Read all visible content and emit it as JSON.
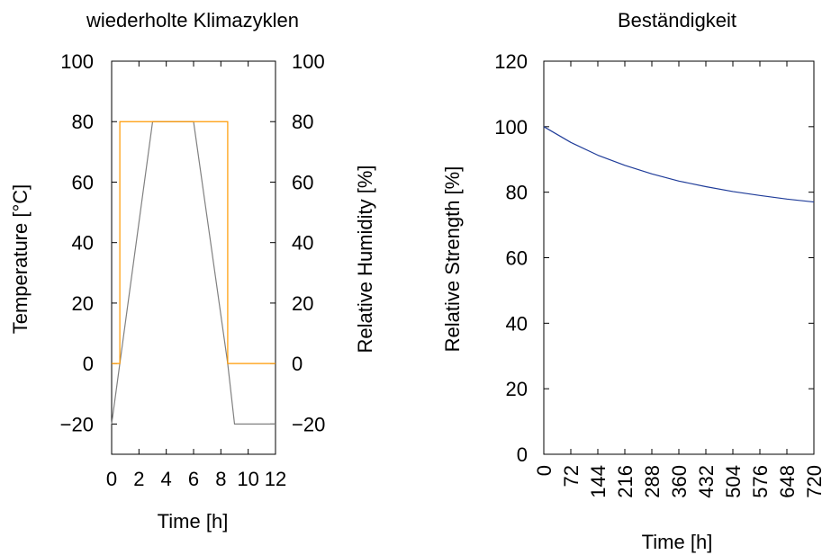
{
  "chart_data": [
    {
      "type": "line",
      "title": "wiederholte Klimazyklen",
      "xlabel": "Time [h]",
      "ylabel": "Temperature [°C]",
      "y2label": "Relative Humidity [%]",
      "xlim": [
        0,
        12
      ],
      "ylim": [
        -30,
        100
      ],
      "y2lim": [
        -30,
        100
      ],
      "x_ticks": [
        "0",
        "2",
        "4",
        "6",
        "8",
        "10",
        "12"
      ],
      "y_ticks": [
        "100",
        "80",
        "60",
        "40",
        "20",
        "0",
        "−20"
      ],
      "y2_ticks": [
        "100",
        "80",
        "60",
        "40",
        "20",
        "0",
        "−20"
      ],
      "grid": false,
      "series": [
        {
          "axis": "left",
          "color": "#808080",
          "x": [
            0,
            3,
            6,
            8.5,
            9,
            12
          ],
          "y": [
            -20,
            80,
            80,
            0,
            -20,
            -20
          ]
        },
        {
          "axis": "right",
          "color": "#ff9900",
          "x": [
            0,
            0.6,
            0.6,
            8.5,
            8.5,
            12
          ],
          "y": [
            0,
            0,
            80,
            80,
            0,
            0
          ]
        }
      ]
    },
    {
      "type": "line",
      "title": "Beständigkeit",
      "xlabel": "Time [h]",
      "ylabel": "Relative Strength [%]",
      "xlim": [
        0,
        720
      ],
      "ylim": [
        0,
        120
      ],
      "x_ticks": [
        "0",
        "72",
        "144",
        "216",
        "288",
        "360",
        "432",
        "504",
        "576",
        "648",
        "720"
      ],
      "y_ticks": [
        "120",
        "100",
        "80",
        "60",
        "40",
        "20",
        "0"
      ],
      "grid": false,
      "series": [
        {
          "color": "#1f3c99",
          "x": [
            0,
            72,
            144,
            216,
            288,
            360,
            432,
            504,
            576,
            648,
            720
          ],
          "y": [
            100,
            95.2,
            91.3,
            88.2,
            85.6,
            83.4,
            81.7,
            80.2,
            79,
            77.9,
            77
          ]
        }
      ]
    }
  ]
}
